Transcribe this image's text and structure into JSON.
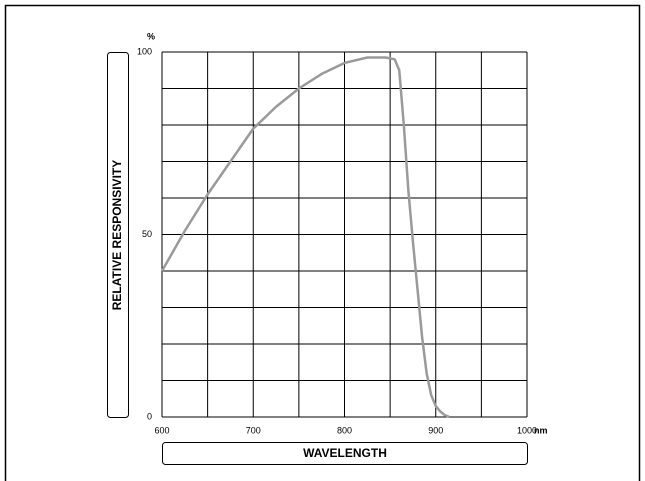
{
  "chart_data": {
    "type": "line",
    "ylabel": "RELATIVE RESPONSIVITY",
    "xlabel": "WAVELENGTH",
    "yunit": "%",
    "xunit": "nm",
    "series": [
      {
        "name": "",
        "color": "#9a9a9a",
        "x": [
          600,
          625,
          650,
          675,
          700,
          725,
          750,
          775,
          800,
          825,
          845,
          855,
          860,
          865,
          870,
          875,
          880,
          885,
          890,
          895,
          900,
          905,
          910,
          915
        ],
        "values": [
          40,
          51,
          61,
          70,
          79,
          85,
          90,
          94,
          97,
          98.5,
          98.5,
          98,
          95,
          80,
          62,
          48,
          35,
          22,
          12,
          6,
          3,
          1.5,
          0.5,
          0
        ]
      }
    ],
    "xlim": [
      600,
      1000
    ],
    "xticks": [
      600,
      700,
      800,
      900,
      1000
    ],
    "xgrid": [
      600,
      650,
      700,
      750,
      800,
      850,
      900,
      950,
      1000
    ],
    "ylim": [
      0,
      100
    ],
    "yticks": [
      0,
      50,
      100
    ],
    "ygrid": [
      0,
      10,
      20,
      30,
      40,
      50,
      60,
      70,
      80,
      90,
      100
    ]
  }
}
